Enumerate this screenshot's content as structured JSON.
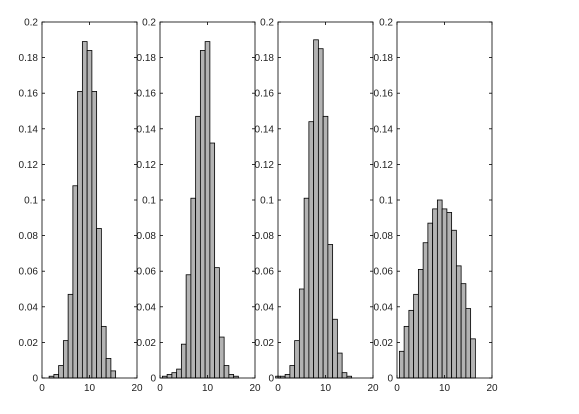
{
  "colors": {
    "bar_fill": "#b3b3b3",
    "bar_stroke": "#000000",
    "axis": "#000000",
    "text": "#222222",
    "background": "#ffffff"
  },
  "chart_data": [
    {
      "type": "bar",
      "title": "",
      "xlabel": "",
      "ylabel": "",
      "xlim": [
        0,
        20
      ],
      "ylim": [
        0,
        0.2
      ],
      "xticks": [
        0,
        10,
        20
      ],
      "xtick_labels": [
        "0",
        "10",
        "20"
      ],
      "yticks": [
        0,
        0.02,
        0.04,
        0.06,
        0.08,
        0.1,
        0.12,
        0.14,
        0.16,
        0.18,
        0.2
      ],
      "ytick_labels": [
        "0",
        "0.02",
        "0.04",
        "0.06",
        "0.08",
        "0.1",
        "0.12",
        "0.14",
        "0.16",
        "0.18",
        "0.2"
      ],
      "grid": false,
      "x": [
        2,
        3,
        4,
        5,
        6,
        7,
        8,
        9,
        10,
        11,
        12,
        13,
        14,
        15
      ],
      "values": [
        0.001,
        0.002,
        0.007,
        0.021,
        0.047,
        0.108,
        0.161,
        0.189,
        0.184,
        0.161,
        0.084,
        0.029,
        0.011,
        0.004
      ]
    },
    {
      "type": "bar",
      "title": "",
      "xlabel": "",
      "ylabel": "",
      "xlim": [
        0,
        20
      ],
      "ylim": [
        0,
        0.2
      ],
      "xticks": [
        0,
        10,
        20
      ],
      "xtick_labels": [
        "0",
        "10",
        "20"
      ],
      "yticks": [
        0,
        0.02,
        0.04,
        0.06,
        0.08,
        0.1,
        0.12,
        0.14,
        0.16,
        0.18,
        0.2
      ],
      "ytick_labels": [
        "0",
        "0.02",
        "0.04",
        "0.06",
        "0.08",
        "0.1",
        "0.12",
        "0.14",
        "0.16",
        "0.18",
        "0.2"
      ],
      "grid": false,
      "x": [
        1,
        2,
        3,
        4,
        5,
        6,
        7,
        8,
        9,
        10,
        11,
        12,
        13,
        14,
        15,
        16
      ],
      "values": [
        0.001,
        0.002,
        0.003,
        0.005,
        0.019,
        0.058,
        0.101,
        0.147,
        0.184,
        0.189,
        0.132,
        0.062,
        0.023,
        0.007,
        0.002,
        0.001
      ]
    },
    {
      "type": "bar",
      "title": "",
      "xlabel": "",
      "ylabel": "",
      "xlim": [
        0,
        20
      ],
      "ylim": [
        0,
        0.2
      ],
      "xticks": [
        0,
        10,
        20
      ],
      "xtick_labels": [
        "0",
        "10",
        "20"
      ],
      "yticks": [
        0,
        0.02,
        0.04,
        0.06,
        0.08,
        0.1,
        0.12,
        0.14,
        0.16,
        0.18,
        0.2
      ],
      "ytick_labels": [
        "0",
        "0.02",
        "0.04",
        "0.06",
        "0.08",
        "0.1",
        "0.12",
        "0.14",
        "0.16",
        "0.18",
        "0.2"
      ],
      "grid": false,
      "x": [
        0,
        1,
        2,
        3,
        4,
        5,
        6,
        7,
        8,
        9,
        10,
        11,
        12,
        13,
        14,
        15
      ],
      "values": [
        0.001,
        0.001,
        0.002,
        0.007,
        0.021,
        0.05,
        0.101,
        0.144,
        0.19,
        0.185,
        0.147,
        0.075,
        0.033,
        0.014,
        0.003,
        0.001
      ]
    },
    {
      "type": "bar",
      "title": "",
      "xlabel": "",
      "ylabel": "",
      "xlim": [
        0,
        20
      ],
      "ylim": [
        0,
        0.2
      ],
      "xticks": [
        0,
        10,
        20
      ],
      "xtick_labels": [
        "0",
        "10",
        "20"
      ],
      "yticks": [
        0,
        0.02,
        0.04,
        0.06,
        0.08,
        0.1,
        0.12,
        0.14,
        0.16,
        0.18,
        0.2
      ],
      "ytick_labels": [
        "0",
        "0.02",
        "0.04",
        "0.06",
        "0.08",
        "0.1",
        "0.12",
        "0.14",
        "0.16",
        "0.18",
        "0.2"
      ],
      "grid": false,
      "x": [
        1,
        2,
        3,
        4,
        5,
        6,
        7,
        8,
        9,
        10,
        11,
        12,
        13,
        14,
        15,
        16
      ],
      "values": [
        0.015,
        0.029,
        0.038,
        0.047,
        0.061,
        0.076,
        0.087,
        0.095,
        0.1,
        0.095,
        0.093,
        0.083,
        0.063,
        0.053,
        0.039,
        0.022
      ]
    }
  ]
}
